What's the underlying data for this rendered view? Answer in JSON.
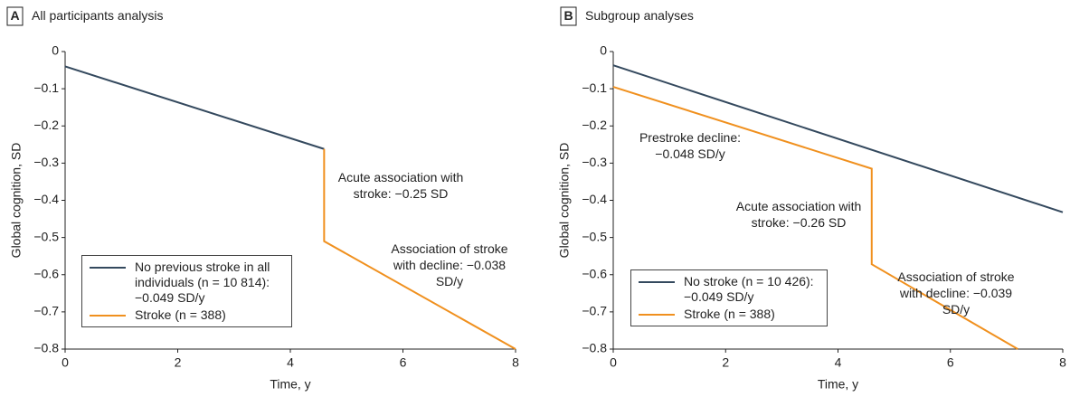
{
  "chart_data": [
    {
      "type": "line",
      "panel_label": "A",
      "title": "All participants analysis",
      "xlabel": "Time, y",
      "ylabel": "Global cognition, SD",
      "xlim": [
        0,
        8
      ],
      "ylim": [
        -0.8,
        0
      ],
      "xticks": [
        0,
        2,
        4,
        6,
        8
      ],
      "yticks": [
        0,
        {
          "value": -0.1,
          "label": "−0.1"
        },
        {
          "value": -0.2,
          "label": "−0.2"
        },
        {
          "value": -0.3,
          "label": "−0.3"
        },
        {
          "value": -0.4,
          "label": "−0.4"
        },
        {
          "value": -0.5,
          "label": "−0.5"
        },
        {
          "value": -0.6,
          "label": "−0.6"
        },
        {
          "value": -0.7,
          "label": "−0.7"
        },
        {
          "value": -0.8,
          "label": "−0.8"
        }
      ],
      "series": [
        {
          "name": "No previous stroke in all individuals (n = 10 814): −0.049 SD/y",
          "color": "#34495e",
          "x": [
            0,
            4.6
          ],
          "values": [
            -0.04,
            -0.262
          ]
        },
        {
          "name": "Stroke (n = 388)",
          "color": "#f0901e",
          "x": [
            4.6,
            4.6,
            8
          ],
          "values": [
            -0.262,
            -0.51,
            -0.8
          ]
        }
      ],
      "annotations": [
        "Acute association with stroke: −0.25 SD",
        "Association of stroke with decline: −0.038 SD/y"
      ]
    },
    {
      "type": "line",
      "panel_label": "B",
      "title": "Subgroup analyses",
      "xlabel": "Time, y",
      "ylabel": "Global cognition, SD",
      "xlim": [
        0,
        8
      ],
      "ylim": [
        -0.8,
        0
      ],
      "xticks": [
        0,
        2,
        4,
        6,
        8
      ],
      "yticks": [
        0,
        {
          "value": -0.1,
          "label": "−0.1"
        },
        {
          "value": -0.2,
          "label": "−0.2"
        },
        {
          "value": -0.3,
          "label": "−0.3"
        },
        {
          "value": -0.4,
          "label": "−0.4"
        },
        {
          "value": -0.5,
          "label": "−0.5"
        },
        {
          "value": -0.6,
          "label": "−0.6"
        },
        {
          "value": -0.7,
          "label": "−0.7"
        },
        {
          "value": -0.8,
          "label": "−0.8"
        }
      ],
      "series": [
        {
          "name": "No stroke (n = 10 426): −0.049 SD/y",
          "color": "#34495e",
          "x": [
            0,
            8
          ],
          "values": [
            -0.037,
            -0.432
          ]
        },
        {
          "name": "Stroke (n = 388)",
          "color": "#f0901e",
          "x": [
            0,
            4.6,
            4.6,
            7.2
          ],
          "values": [
            -0.095,
            -0.315,
            -0.572,
            -0.8
          ]
        }
      ],
      "annotations": [
        "Prestroke decline: −0.048 SD/y",
        "Acute association with stroke: −0.26 SD",
        "Association of stroke with decline: −0.039 SD/y"
      ]
    }
  ]
}
